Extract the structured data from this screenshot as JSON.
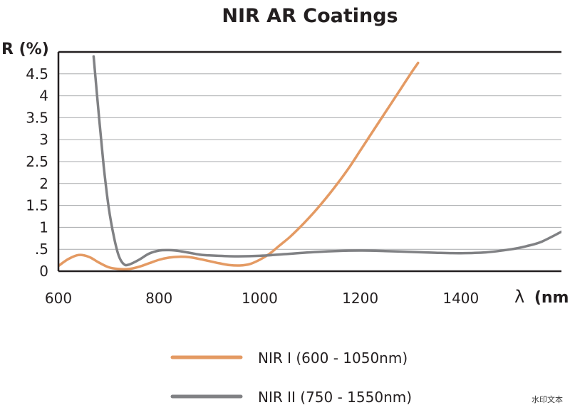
{
  "chart_data": {
    "type": "line",
    "title": "NIR AR Coatings",
    "ylabel": "R (%)",
    "xlabel_symbol": "λ",
    "xlabel_unit": "(nm)",
    "xlim": [
      600,
      1600
    ],
    "ylim": [
      0,
      5
    ],
    "x_ticks": [
      600,
      800,
      1000,
      1200,
      1400
    ],
    "x_tick_labels": [
      "600",
      "800",
      "1000",
      "1200",
      "1400"
    ],
    "y_ticks": [
      0,
      0.5,
      1,
      1.5,
      2,
      2.5,
      3,
      3.5,
      4,
      4.5
    ],
    "y_tick_labels": [
      "0",
      ".5",
      "1",
      "1.5",
      "2",
      "2.5",
      "3",
      "3.5",
      "4",
      "4.5"
    ],
    "grid": "horizontal",
    "legend_position": "bottom-center",
    "series": [
      {
        "name": "NIR I (600 - 1050nm)",
        "color": "#e49a63",
        "x": [
          600,
          620,
          640,
          660,
          680,
          700,
          720,
          740,
          760,
          780,
          800,
          820,
          840,
          860,
          880,
          900,
          920,
          940,
          960,
          980,
          1000,
          1020,
          1040,
          1060,
          1080,
          1100,
          1120,
          1140,
          1160,
          1180,
          1200,
          1220,
          1240,
          1260,
          1280,
          1300,
          1315
        ],
        "y": [
          0.12,
          0.28,
          0.37,
          0.33,
          0.2,
          0.09,
          0.05,
          0.05,
          0.1,
          0.18,
          0.26,
          0.31,
          0.33,
          0.32,
          0.28,
          0.23,
          0.18,
          0.14,
          0.13,
          0.16,
          0.26,
          0.4,
          0.59,
          0.78,
          1.0,
          1.24,
          1.5,
          1.78,
          2.08,
          2.4,
          2.75,
          3.1,
          3.45,
          3.8,
          4.15,
          4.5,
          4.75
        ]
      },
      {
        "name": "NIR II (750 - 1550nm)",
        "color": "#808184",
        "x": [
          670,
          680,
          690,
          700,
          710,
          720,
          730,
          740,
          760,
          780,
          800,
          820,
          840,
          860,
          880,
          900,
          950,
          1000,
          1050,
          1100,
          1150,
          1200,
          1250,
          1300,
          1350,
          1400,
          1450,
          1500,
          1530,
          1560,
          1600
        ],
        "y": [
          4.9,
          3.6,
          2.4,
          1.45,
          0.8,
          0.35,
          0.16,
          0.15,
          0.26,
          0.4,
          0.47,
          0.48,
          0.46,
          0.42,
          0.38,
          0.36,
          0.34,
          0.35,
          0.39,
          0.43,
          0.46,
          0.47,
          0.46,
          0.44,
          0.42,
          0.41,
          0.43,
          0.5,
          0.57,
          0.67,
          0.9
        ]
      }
    ]
  },
  "watermark": "水印文本"
}
